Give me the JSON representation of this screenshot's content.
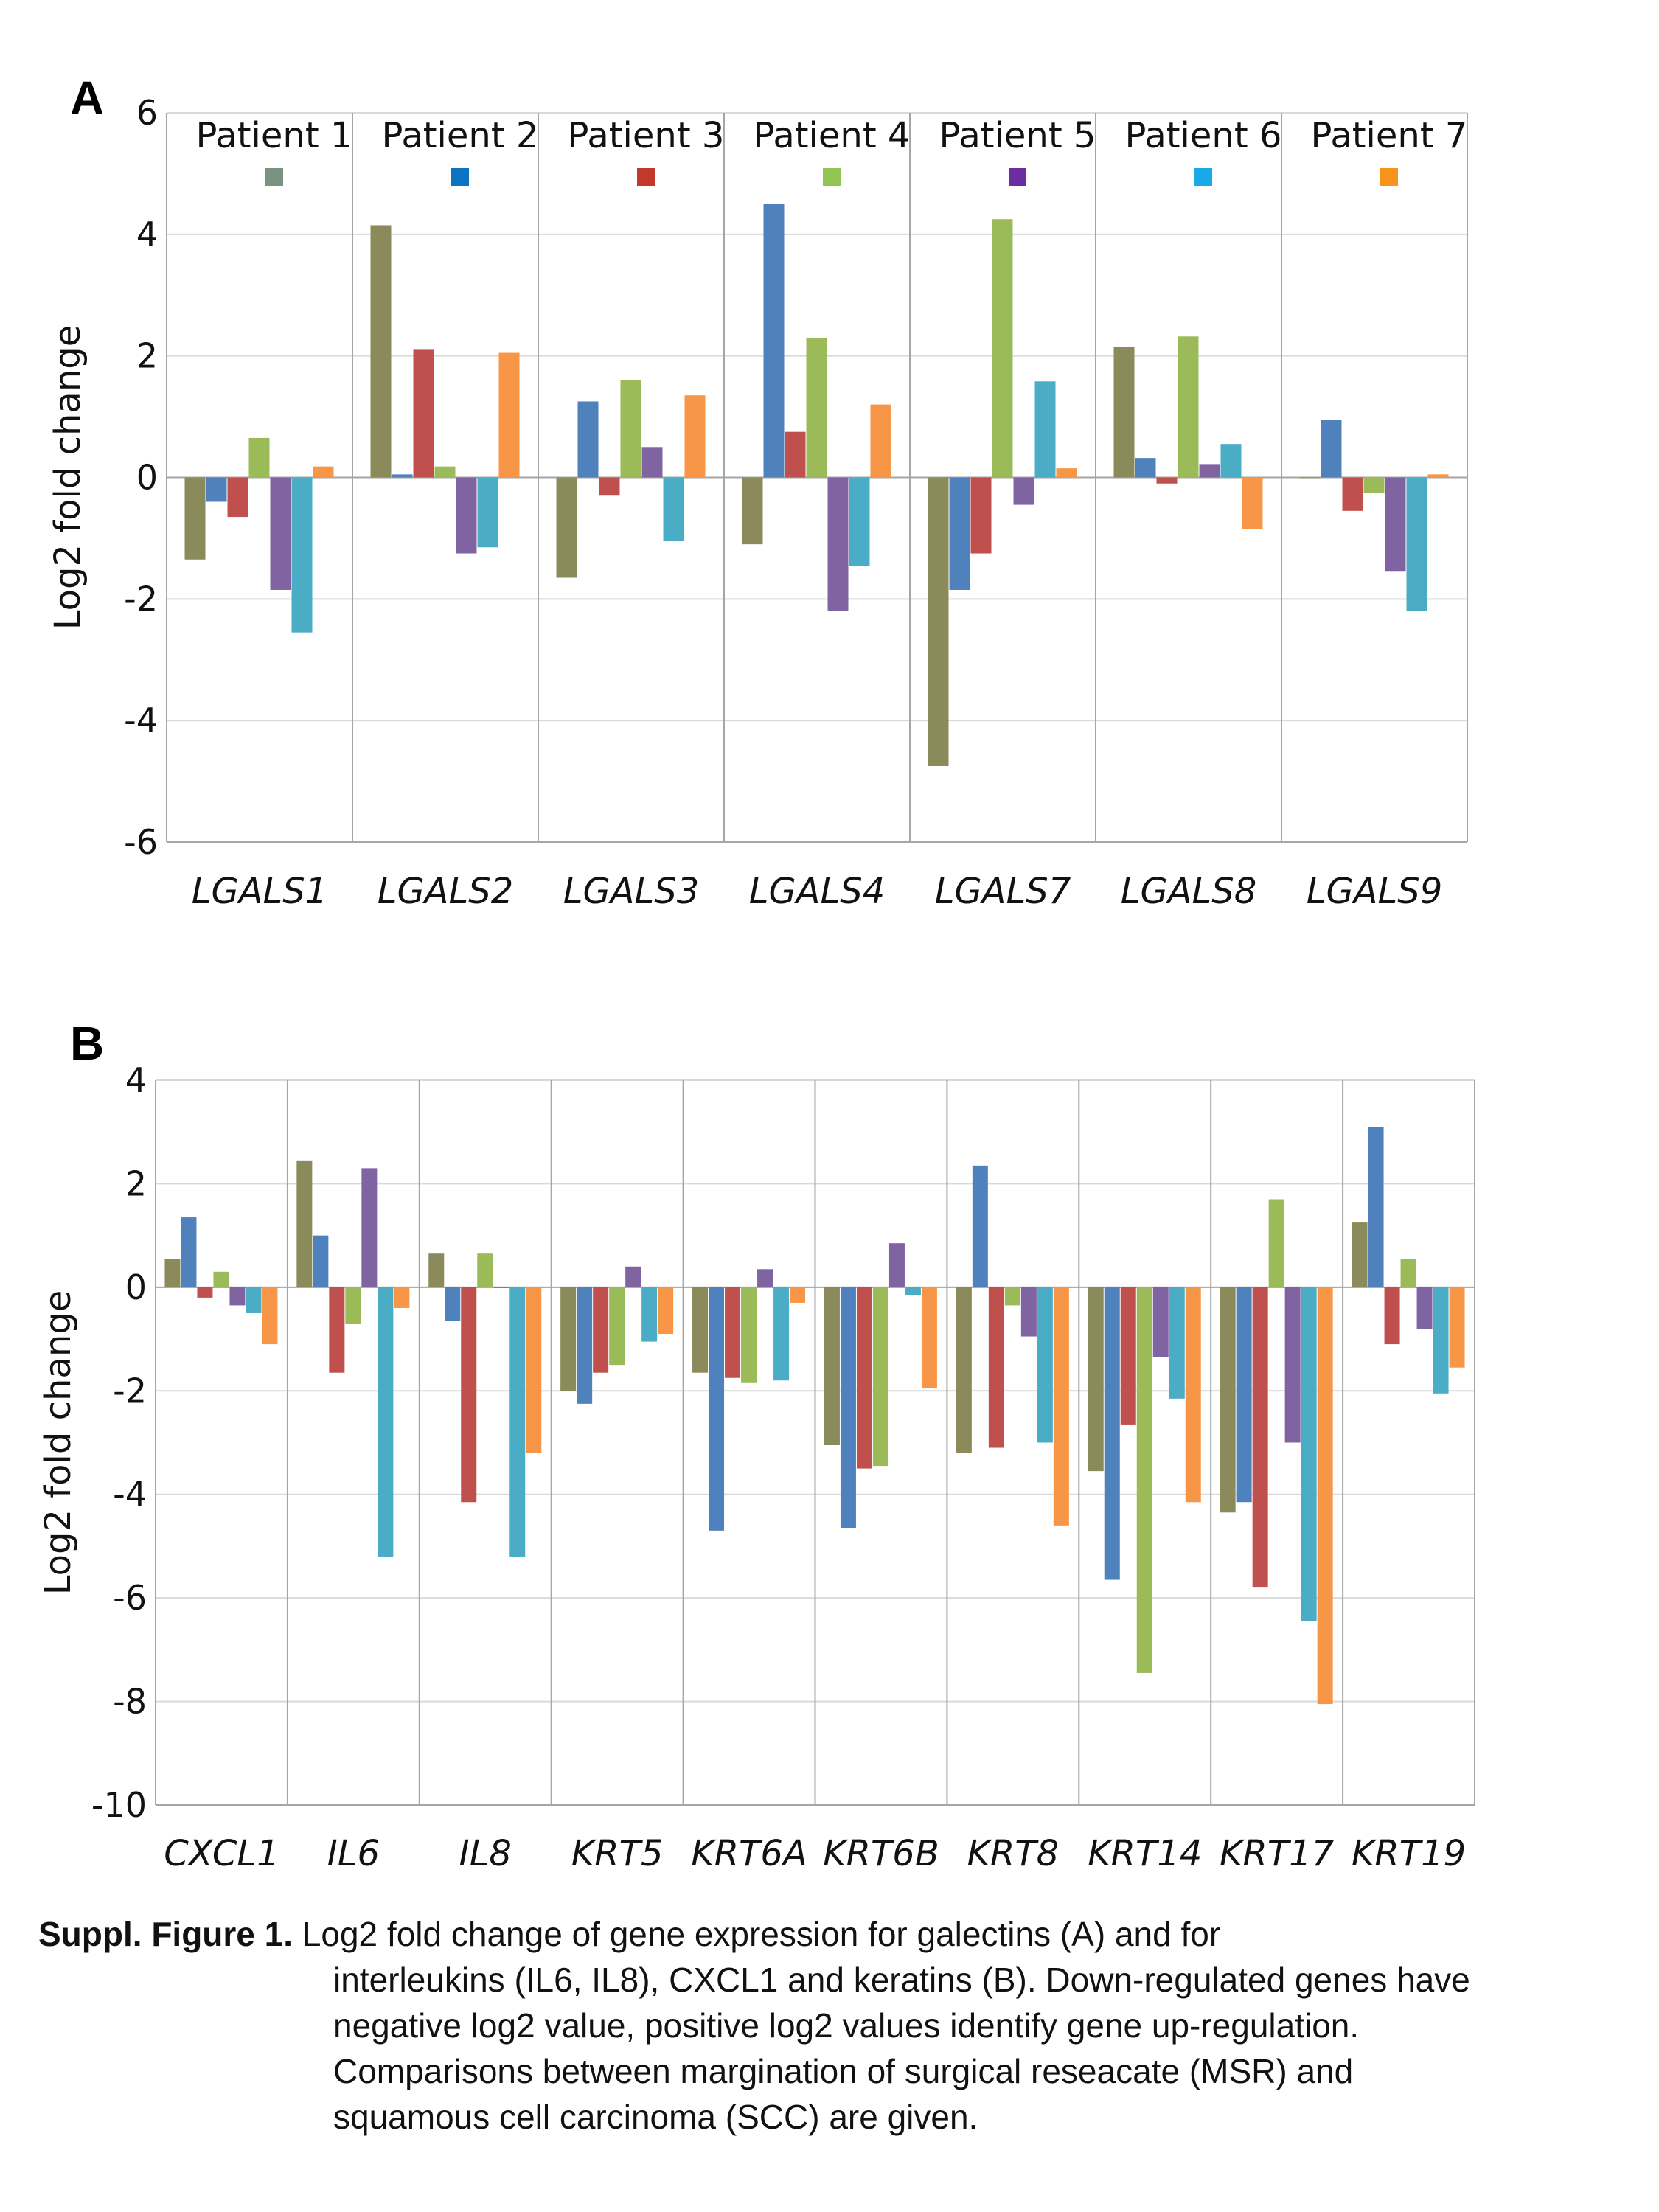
{
  "chart_data": [
    {
      "type": "bar",
      "panel_label": "A",
      "ylabel": "Log2 fold change",
      "ylim": [
        -6,
        6
      ],
      "yticks": [
        -6,
        -4,
        -2,
        0,
        2,
        4,
        6
      ],
      "ytick_labels": [
        "-6",
        "-4",
        "-2",
        "0",
        "2",
        "4",
        "6"
      ],
      "grid": true,
      "legend_placement": "top",
      "categories": [
        "LGALS1",
        "LGALS2",
        "LGALS3",
        "LGALS4",
        "LGALS7",
        "LGALS8",
        "LGALS9"
      ],
      "series": [
        {
          "name": "Patient 1",
          "color": "#8a8a5a",
          "legend_color": "#7a9280",
          "values": [
            -1.35,
            4.15,
            -1.65,
            -1.1,
            -4.75,
            2.15,
            0.0
          ]
        },
        {
          "name": "Patient 2",
          "color": "#4f81bd",
          "legend_color": "#0c73c2",
          "values": [
            -0.4,
            0.05,
            1.25,
            4.5,
            -1.85,
            0.32,
            0.95
          ]
        },
        {
          "name": "Patient 3",
          "color": "#c0504d",
          "legend_color": "#c0392b",
          "values": [
            -0.65,
            2.1,
            -0.3,
            0.75,
            -1.25,
            -0.1,
            -0.55
          ]
        },
        {
          "name": "Patient 4",
          "color": "#9bbb59",
          "legend_color": "#92c453",
          "values": [
            0.65,
            0.18,
            1.6,
            2.3,
            4.25,
            2.32,
            -0.25
          ]
        },
        {
          "name": "Patient 5",
          "color": "#8064a2",
          "legend_color": "#6a2ea0",
          "values": [
            -1.85,
            -1.25,
            0.5,
            -2.2,
            -0.45,
            0.22,
            -1.55
          ]
        },
        {
          "name": "Patient 6",
          "color": "#4bacc6",
          "legend_color": "#1aa9e8",
          "values": [
            -2.55,
            -1.15,
            -1.05,
            -1.45,
            1.58,
            0.55,
            -2.2
          ]
        },
        {
          "name": "Patient 7",
          "color": "#f79646",
          "legend_color": "#f7941d",
          "values": [
            0.18,
            2.05,
            1.35,
            1.2,
            0.15,
            -0.85,
            0.05
          ]
        }
      ]
    },
    {
      "type": "bar",
      "panel_label": "B",
      "ylabel": "Log2 fold change",
      "ylim": [
        -10,
        4
      ],
      "yticks": [
        -10,
        -8,
        -6,
        -4,
        -2,
        0,
        2,
        4
      ],
      "ytick_labels": [
        "-10",
        "-8",
        "-6",
        "-4",
        "-2",
        "0",
        "2",
        "4"
      ],
      "grid": true,
      "categories": [
        "CXCL1",
        "IL6",
        "IL8",
        "KRT5",
        "KRT6A",
        "KRT6B",
        "KRT8",
        "KRT14",
        "KRT17",
        "KRT19"
      ],
      "series": [
        {
          "color": "#8a8a5a",
          "values": [
            0.55,
            2.45,
            0.65,
            -2.0,
            -1.65,
            -3.05,
            -3.2,
            -3.55,
            -4.35,
            1.25
          ]
        },
        {
          "color": "#4f81bd",
          "values": [
            1.35,
            1.0,
            -0.65,
            -2.25,
            -4.7,
            -4.65,
            2.35,
            -5.65,
            -4.15,
            3.1
          ]
        },
        {
          "color": "#c0504d",
          "values": [
            -0.2,
            -1.65,
            -4.15,
            -1.65,
            -1.75,
            -3.5,
            -3.1,
            -2.65,
            -5.8,
            -1.1
          ]
        },
        {
          "color": "#9bbb59",
          "values": [
            0.3,
            -0.7,
            0.65,
            -1.5,
            -1.85,
            -3.45,
            -0.35,
            -7.45,
            1.7,
            0.55
          ]
        },
        {
          "color": "#8064a2",
          "values": [
            -0.35,
            2.3,
            0.0,
            0.4,
            0.35,
            0.85,
            -0.95,
            -1.35,
            -3.0,
            -0.8
          ]
        },
        {
          "color": "#4bacc6",
          "values": [
            -0.5,
            -5.2,
            -5.2,
            -1.05,
            -1.8,
            -0.15,
            -3.0,
            -2.15,
            -6.45,
            -2.05
          ]
        },
        {
          "color": "#f79646",
          "values": [
            -1.1,
            -0.4,
            -3.2,
            -0.9,
            -0.3,
            -1.95,
            -4.6,
            -4.15,
            -8.05,
            -1.55
          ]
        }
      ]
    }
  ],
  "caption": {
    "label": "Suppl. Figure 1.",
    "lines": [
      "Log2 fold change of gene expression for galectins (A) and for",
      "interleukins (IL6, IL8), CXCL1 and keratins (B). Down-regulated genes have",
      "negative log2 value, positive log2 values identify gene up-regulation.",
      "Comparisons between margination of surgical reseacate (MSR) and",
      "squamous cell carcinoma (SCC) are given."
    ]
  }
}
